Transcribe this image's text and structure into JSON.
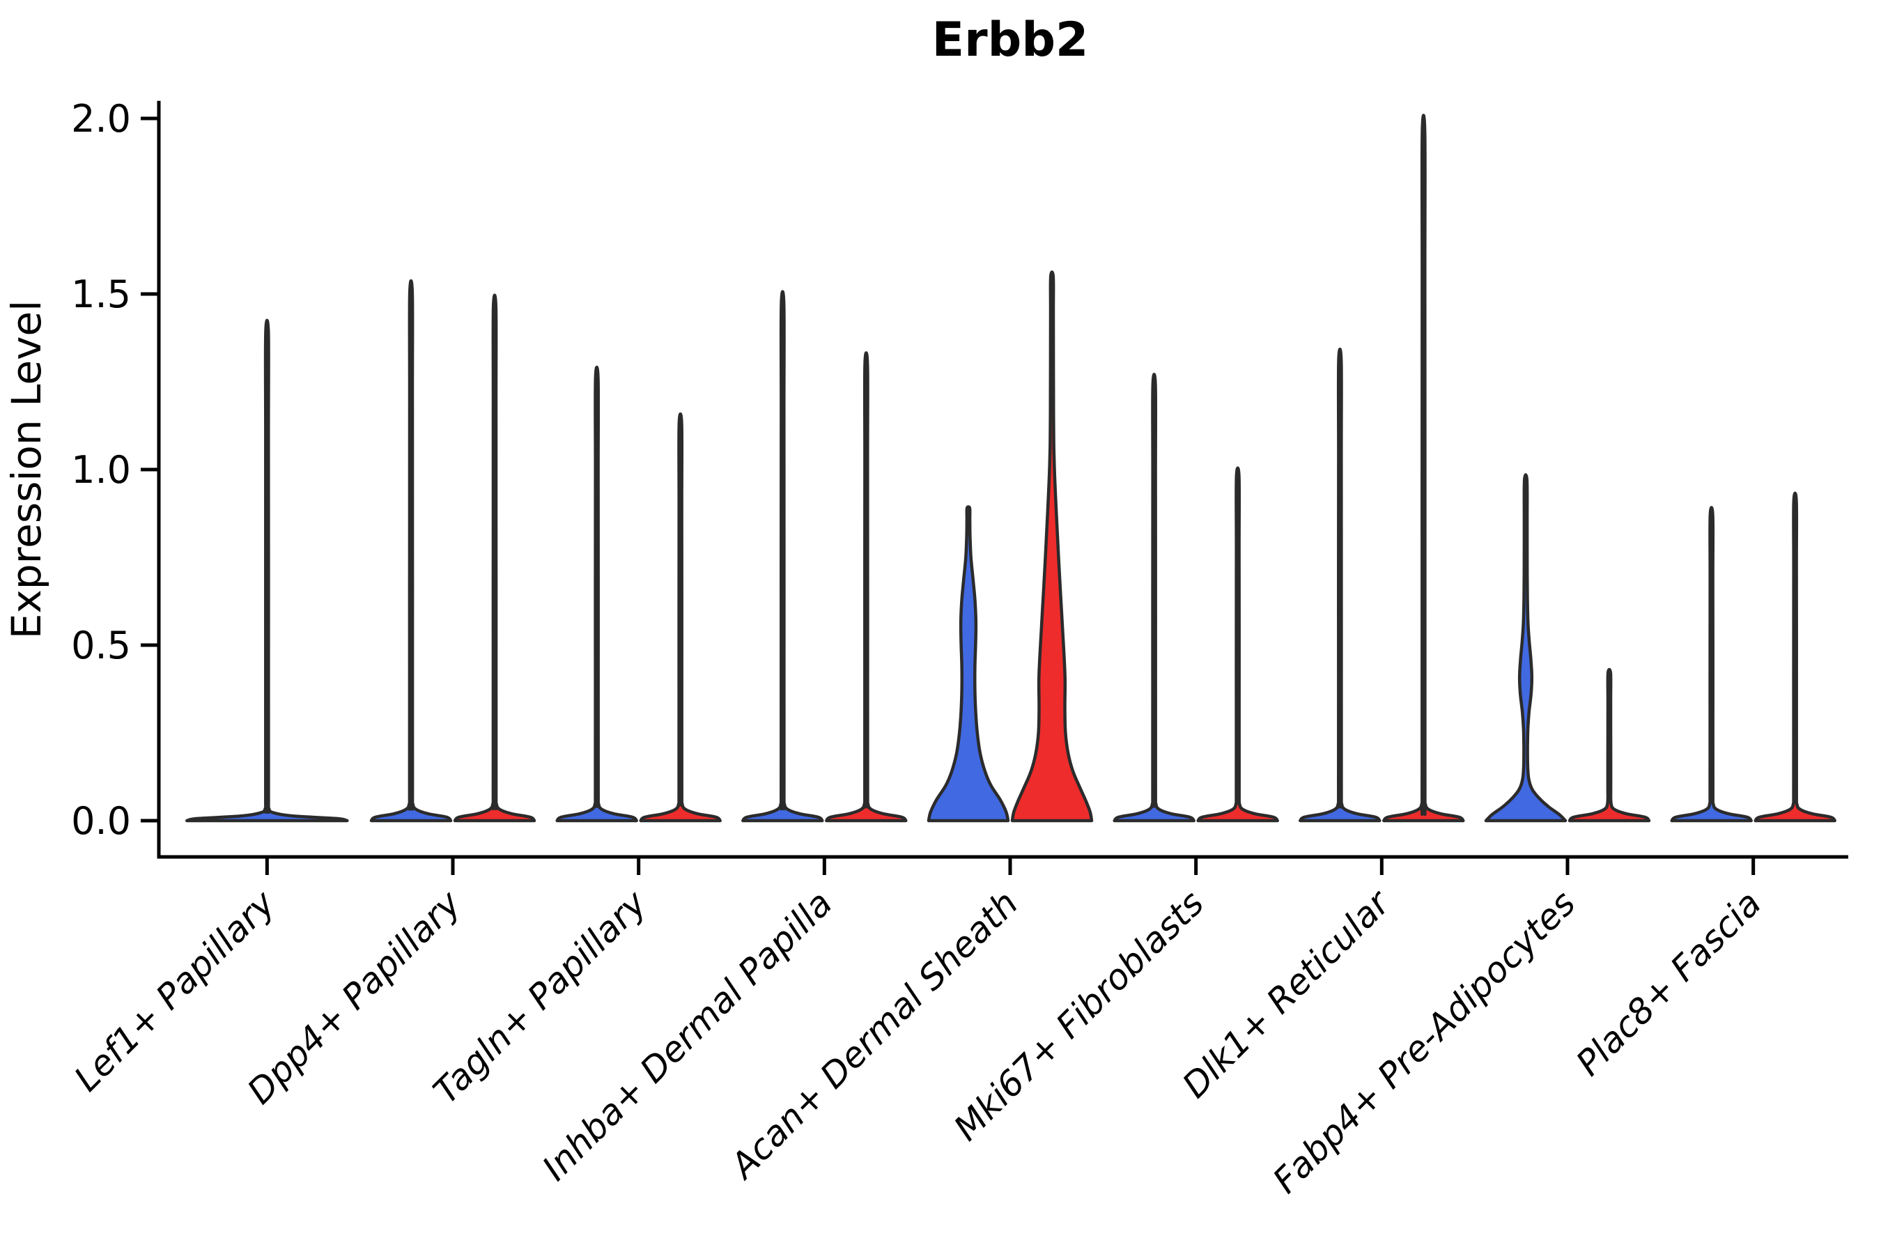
{
  "title": "Erbb2",
  "ylabel": "Expression Level",
  "background_color": "#ffffff",
  "colors": {
    "violin_blue": "#4169E1",
    "violin_red": "#EE2C2C",
    "violin_outline": "#2b2b2b",
    "axis": "#000000",
    "text": "#000000"
  },
  "chart_data": {
    "type": "violin",
    "title": "Erbb2",
    "xlabel": "",
    "ylabel": "Expression Level",
    "ylim": [
      -0.1,
      2.05
    ],
    "yticks": [
      0.0,
      0.5,
      1.0,
      1.5,
      2.0
    ],
    "ytick_labels": [
      "0.0",
      "0.5",
      "1.0",
      "1.5",
      "2.0"
    ],
    "grid": false,
    "legend": "none",
    "x_label_rotation_deg": 45,
    "x_label_style": "italic",
    "categories": [
      {
        "label": "Lef1+ Papillary",
        "violins": [
          {
            "split": "full",
            "color": "#4169E1",
            "max_expression": 1.39,
            "profile": "spike_full"
          }
        ]
      },
      {
        "label": "Dpp4+ Papillary",
        "violins": [
          {
            "split": "left",
            "color": "#4169E1",
            "max_expression": 1.5,
            "profile": "spike"
          },
          {
            "split": "right",
            "color": "#EE2C2C",
            "max_expression": 1.46,
            "profile": "spike"
          }
        ]
      },
      {
        "label": "Tagln+ Papillary",
        "violins": [
          {
            "split": "left",
            "color": "#4169E1",
            "max_expression": 1.26,
            "profile": "spike"
          },
          {
            "split": "right",
            "color": "#EE2C2C",
            "max_expression": 1.13,
            "profile": "spike"
          }
        ]
      },
      {
        "label": "Inhba+ Dermal Papilla",
        "violins": [
          {
            "split": "left",
            "color": "#4169E1",
            "max_expression": 1.47,
            "profile": "spike"
          },
          {
            "split": "right",
            "color": "#EE2C2C",
            "max_expression": 1.3,
            "profile": "spike"
          }
        ]
      },
      {
        "label": "Acan+ Dermal Sheath",
        "violins": [
          {
            "split": "left",
            "color": "#4169E1",
            "max_expression": 0.89,
            "profile": "acan_blue"
          },
          {
            "split": "right",
            "color": "#EE2C2C",
            "max_expression": 1.55,
            "profile": "acan_red"
          }
        ]
      },
      {
        "label": "Mki67+ Fibroblasts",
        "violins": [
          {
            "split": "left",
            "color": "#4169E1",
            "max_expression": 1.24,
            "profile": "spike"
          },
          {
            "split": "right",
            "color": "#EE2C2C",
            "max_expression": 0.98,
            "profile": "spike"
          }
        ]
      },
      {
        "label": "Dlk1+ Reticular",
        "violins": [
          {
            "split": "left",
            "color": "#4169E1",
            "max_expression": 1.31,
            "profile": "spike"
          },
          {
            "split": "right",
            "color": "#EE2C2C",
            "max_expression": 1.96,
            "profile": "spike"
          }
        ]
      },
      {
        "label": "Fabp4+ Pre-Adipocytes",
        "violins": [
          {
            "split": "left",
            "color": "#4169E1",
            "max_expression": 0.97,
            "profile": "fabp4_blue"
          },
          {
            "split": "right",
            "color": "#EE2C2C",
            "max_expression": 0.42,
            "profile": "spike"
          }
        ]
      },
      {
        "label": "Plac8+ Fascia",
        "violins": [
          {
            "split": "left",
            "color": "#4169E1",
            "max_expression": 0.87,
            "profile": "spike"
          },
          {
            "split": "right",
            "color": "#EE2C2C",
            "max_expression": 0.91,
            "profile": "spike"
          }
        ]
      }
    ],
    "density_profiles": {
      "spike": {
        "base": [
          [
            0,
            1.0
          ],
          [
            0.01,
            0.9
          ],
          [
            0.02,
            0.42
          ],
          [
            0.032,
            0.13
          ],
          [
            0.048,
            0.045
          ],
          [
            0.09,
            0.036
          ]
        ],
        "tip_width": 0.033
      },
      "spike_full": {
        "base": [
          [
            0,
            1.0
          ],
          [
            0.006,
            0.88
          ],
          [
            0.013,
            0.34
          ],
          [
            0.022,
            0.09
          ],
          [
            0.035,
            0.022
          ],
          [
            0.08,
            0.018
          ]
        ],
        "tip_width": 0.017
      },
      "acan_blue": {
        "points": [
          [
            0,
            1.0
          ],
          [
            0.025,
            0.95
          ],
          [
            0.06,
            0.8
          ],
          [
            0.1,
            0.57
          ],
          [
            0.14,
            0.42
          ],
          [
            0.19,
            0.3
          ],
          [
            0.25,
            0.225
          ],
          [
            0.31,
            0.185
          ],
          [
            0.37,
            0.165
          ],
          [
            0.44,
            0.165
          ],
          [
            0.51,
            0.185
          ],
          [
            0.57,
            0.19
          ],
          [
            0.63,
            0.165
          ],
          [
            0.69,
            0.115
          ],
          [
            0.75,
            0.065
          ],
          [
            0.81,
            0.042
          ],
          [
            0.86,
            0.037
          ],
          [
            0.89,
            0.034
          ]
        ]
      },
      "acan_red": {
        "points": [
          [
            0,
            1.0
          ],
          [
            0.025,
            0.96
          ],
          [
            0.06,
            0.84
          ],
          [
            0.1,
            0.68
          ],
          [
            0.14,
            0.53
          ],
          [
            0.19,
            0.41
          ],
          [
            0.25,
            0.34
          ],
          [
            0.32,
            0.325
          ],
          [
            0.4,
            0.33
          ],
          [
            0.48,
            0.3
          ],
          [
            0.56,
            0.26
          ],
          [
            0.64,
            0.22
          ],
          [
            0.73,
            0.175
          ],
          [
            0.82,
            0.135
          ],
          [
            0.9,
            0.1
          ],
          [
            0.98,
            0.068
          ],
          [
            1.06,
            0.048
          ],
          [
            1.15,
            0.04
          ],
          [
            1.3,
            0.037
          ],
          [
            1.45,
            0.035
          ],
          [
            1.55,
            0.032
          ]
        ]
      },
      "fabp4_blue": {
        "points": [
          [
            0,
            1.0
          ],
          [
            0.018,
            0.84
          ],
          [
            0.04,
            0.57
          ],
          [
            0.065,
            0.33
          ],
          [
            0.09,
            0.16
          ],
          [
            0.12,
            0.075
          ],
          [
            0.16,
            0.05
          ],
          [
            0.21,
            0.046
          ],
          [
            0.26,
            0.055
          ],
          [
            0.31,
            0.085
          ],
          [
            0.36,
            0.135
          ],
          [
            0.41,
            0.155
          ],
          [
            0.46,
            0.13
          ],
          [
            0.51,
            0.09
          ],
          [
            0.56,
            0.06
          ],
          [
            0.62,
            0.045
          ],
          [
            0.7,
            0.038
          ],
          [
            0.85,
            0.036
          ],
          [
            0.97,
            0.032
          ]
        ]
      }
    }
  }
}
